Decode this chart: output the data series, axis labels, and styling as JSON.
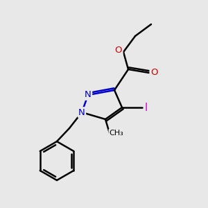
{
  "bg_color": "#e8e8e8",
  "lw": 1.8,
  "atom_colors": {
    "N": "#0000cc",
    "O": "#cc0000",
    "I": "#cc00cc",
    "C": "#000000"
  },
  "font_size_atom": 9.5,
  "font_size_label": 8.5
}
